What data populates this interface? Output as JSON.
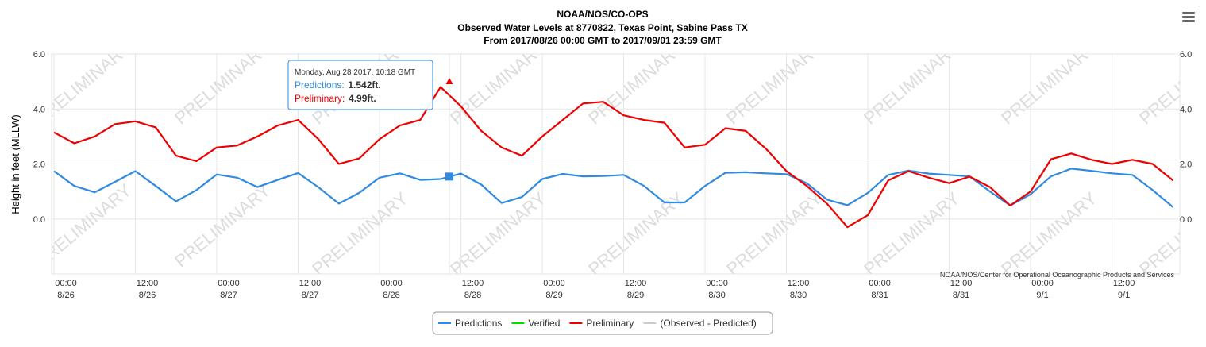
{
  "chart_data": {
    "type": "line",
    "title": "NOAA/NOS/CO-OPS",
    "subtitle": [
      "Observed Water Levels at 8770822, Texas Point, Sabine Pass TX",
      "From 2017/08/26 00:00 GMT to 2017/09/01 23:59 GMT"
    ],
    "y_label": "Height in feet (MLLW)",
    "credits": "NOAA/NOS/Center for Operational Oceanographic Products and Services",
    "watermark": "PRELIMINARY",
    "grid": true,
    "legend": "bottom",
    "xlim": [
      0,
      166
    ],
    "xticks": [
      {
        "value": 0,
        "label": "00:00",
        "date": "8/26"
      },
      {
        "value": 12,
        "label": "12:00",
        "date": "8/26"
      },
      {
        "value": 24,
        "label": "00:00",
        "date": "8/27"
      },
      {
        "value": 36,
        "label": "12:00",
        "date": "8/27"
      },
      {
        "value": 48,
        "label": "00:00",
        "date": "8/28"
      },
      {
        "value": 60,
        "label": "12:00",
        "date": "8/28"
      },
      {
        "value": 72,
        "label": "00:00",
        "date": "8/29"
      },
      {
        "value": 84,
        "label": "12:00",
        "date": "8/29"
      },
      {
        "value": 96,
        "label": "00:00",
        "date": "8/30"
      },
      {
        "value": 108,
        "label": "12:00",
        "date": "8/30"
      },
      {
        "value": 120,
        "label": "00:00",
        "date": "8/31"
      },
      {
        "value": 132,
        "label": "12:00",
        "date": "8/31"
      },
      {
        "value": 144,
        "label": "00:00",
        "date": "9/1"
      },
      {
        "value": 156,
        "label": "12:00",
        "date": "9/1"
      }
    ],
    "ylim": [
      -2,
      6
    ],
    "yticks": [
      {
        "value": 0,
        "label": "0.0"
      },
      {
        "value": 2,
        "label": "2.0"
      },
      {
        "value": 4,
        "label": "4.0"
      },
      {
        "value": 6,
        "label": "6.0"
      }
    ],
    "x": [
      0,
      3,
      6,
      9,
      12,
      15,
      18,
      21,
      24,
      27,
      30,
      33,
      36,
      39,
      42,
      45,
      48,
      51,
      54,
      57,
      60,
      63,
      66,
      69,
      72,
      75,
      78,
      81,
      84,
      87,
      90,
      93,
      96,
      99,
      102,
      105,
      108,
      111,
      114,
      117,
      120,
      123,
      126,
      129,
      132,
      135,
      138,
      141,
      144,
      147,
      150,
      153,
      156,
      159,
      162,
      165
    ],
    "series": [
      {
        "name": "Predictions",
        "color": "#2f8ae0",
        "values": [
          1.74,
          1.2,
          0.97,
          1.35,
          1.74,
          1.2,
          0.64,
          1.05,
          1.62,
          1.5,
          1.16,
          1.42,
          1.67,
          1.15,
          0.56,
          0.95,
          1.5,
          1.66,
          1.42,
          1.45,
          1.65,
          1.25,
          0.58,
          0.8,
          1.45,
          1.64,
          1.55,
          1.56,
          1.6,
          1.2,
          0.6,
          0.6,
          1.2,
          1.68,
          1.7,
          1.66,
          1.63,
          1.3,
          0.7,
          0.5,
          0.95,
          1.6,
          1.76,
          1.65,
          1.6,
          1.55,
          1.0,
          0.49,
          0.9,
          1.55,
          1.83,
          1.75,
          1.66,
          1.6,
          1.05,
          0.43
        ]
      },
      {
        "name": "Verified",
        "color": "#00e000",
        "values": [
          null,
          null,
          null,
          null,
          null,
          null,
          null,
          null,
          null,
          null,
          null,
          null,
          null,
          null,
          null,
          null,
          null,
          null,
          null,
          null,
          null,
          null,
          null,
          null,
          null,
          null,
          null,
          null,
          null,
          null,
          null,
          null,
          null,
          null,
          null,
          null,
          null,
          null,
          null,
          null,
          null,
          null,
          null,
          null,
          null,
          null,
          null,
          null,
          null,
          null,
          null,
          null,
          null,
          null,
          null,
          null
        ]
      },
      {
        "name": "Preliminary",
        "color": "#ee0000",
        "values": [
          3.15,
          2.75,
          3.0,
          3.45,
          3.55,
          3.33,
          2.3,
          2.1,
          2.6,
          2.67,
          3.0,
          3.4,
          3.6,
          2.9,
          2.0,
          2.2,
          2.9,
          3.4,
          3.6,
          4.8,
          4.1,
          3.2,
          2.6,
          2.3,
          3.0,
          3.6,
          4.2,
          4.26,
          3.77,
          3.6,
          3.5,
          2.6,
          2.7,
          3.3,
          3.2,
          2.55,
          1.74,
          1.2,
          0.55,
          -0.3,
          0.14,
          1.4,
          1.74,
          1.5,
          1.3,
          1.54,
          1.16,
          0.49,
          1.0,
          2.17,
          2.38,
          2.15,
          2.0,
          2.15,
          2.0,
          1.4
        ]
      },
      {
        "name": "(Observed - Predicted)",
        "color": "#cccccc",
        "visible": false,
        "values": [
          null,
          null,
          null,
          null,
          null,
          null,
          null,
          null,
          null,
          null,
          null,
          null,
          null,
          null,
          null,
          null,
          null,
          null,
          null,
          null,
          null,
          null,
          null,
          null,
          null,
          null,
          null,
          null,
          null,
          null,
          null,
          null,
          null,
          null,
          null,
          null,
          null,
          null,
          null,
          null,
          null,
          null,
          null,
          null,
          null,
          null,
          null,
          null,
          null,
          null,
          null,
          null,
          null,
          null,
          null,
          null
        ]
      }
    ],
    "tooltip": {
      "x": 58.3,
      "header": "Monday, Aug 28 2017, 10:18 GMT",
      "items": [
        {
          "series": "Predictions",
          "value": 1.542,
          "label": "1.542ft."
        },
        {
          "series": "Preliminary",
          "value": 4.99,
          "label": "4.99ft."
        }
      ]
    }
  }
}
